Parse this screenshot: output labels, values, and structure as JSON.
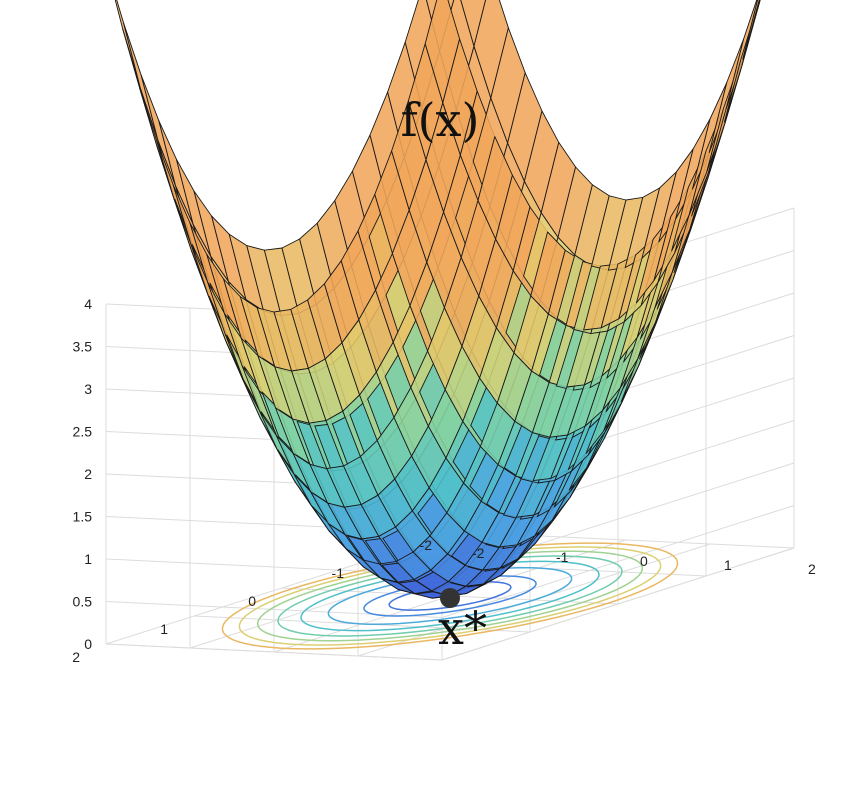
{
  "chart_data": {
    "type": "surface",
    "title": "f(x)",
    "function": "x^2 + y^2",
    "xlim": [
      -2,
      2
    ],
    "ylim": [
      -2,
      2
    ],
    "zlim": [
      0,
      4
    ],
    "x_ticks": [
      "-2",
      "-1",
      "0",
      "1",
      "2"
    ],
    "y_ticks": [
      "-2",
      "-1",
      "0",
      "1",
      "2"
    ],
    "z_ticks": [
      "0",
      "0.5",
      "1",
      "1.5",
      "2",
      "2.5",
      "3",
      "3.5",
      "4"
    ],
    "mesh_divisions": 20,
    "contour_levels": [
      0.25,
      0.5,
      1,
      1.5,
      2,
      2.5,
      3,
      3.5
    ],
    "minimum": {
      "x": 0,
      "y": 0,
      "z": 0,
      "label": "x*"
    },
    "colors": {
      "grid": "#dcdcdc",
      "mesh_lines": "#1a1a1a",
      "colormap": [
        "#3d5fd8",
        "#4a9fe3",
        "#4fc1c8",
        "#86d39e",
        "#e2cf6e",
        "#f0a65a"
      ],
      "minimum_point": "#333333"
    }
  }
}
